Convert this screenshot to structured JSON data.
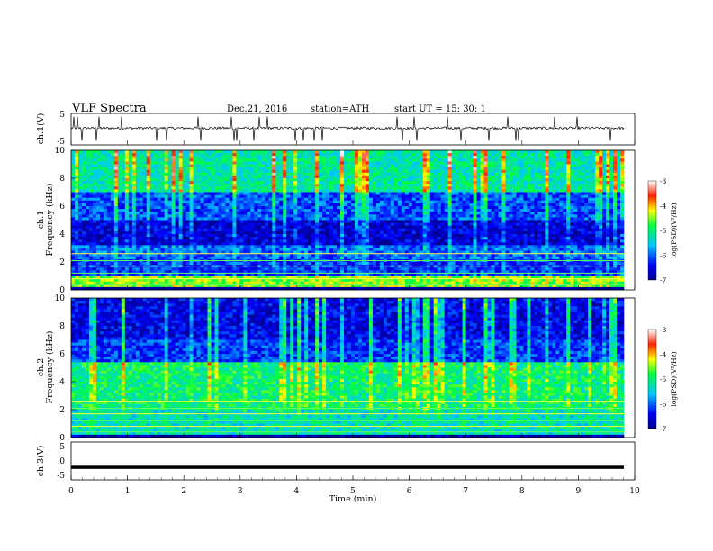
{
  "header": {
    "title": "VLF  Spectra",
    "date": "Dec.21, 2016",
    "station": "station=ATH",
    "start": "start  UT  =    15: 30: 1"
  },
  "chart_data": [
    {
      "type": "line",
      "name": "ch1-waveform",
      "ylabel": "ch.1(V)",
      "xlim": [
        0,
        10
      ],
      "ylim": [
        -5,
        5
      ],
      "yticks": [
        "5",
        "-5"
      ],
      "baseline_v": 0.2,
      "spike_times_min": [
        0.05,
        0.12,
        0.19,
        0.45,
        0.5,
        0.92,
        1.55,
        1.72,
        2.3,
        2.35,
        2.9,
        2.95,
        3.0,
        3.3,
        3.4,
        3.55,
        4.05,
        4.2,
        4.4,
        4.55,
        5.9,
        6.0,
        6.2,
        6.25,
        6.8,
        7.05,
        7.55,
        7.9,
        8.05,
        8.1,
        8.75,
        9.15,
        9.75
      ]
    },
    {
      "type": "heatmap",
      "name": "ch1-spectrogram",
      "ylabel_top": "ch.1",
      "ylabel": "Frequency  (kHz)",
      "xlim": [
        0,
        9.8
      ],
      "ylim": [
        0,
        10
      ],
      "yticks": [
        "0",
        "2",
        "4",
        "6",
        "8",
        "10"
      ],
      "colorbar": {
        "label": "log(PSD)(V²/Hz)",
        "ticks": [
          "-3",
          "-4",
          "-5",
          "-6",
          "-7"
        ],
        "range": [
          -7,
          -3
        ]
      },
      "bands_khz": [
        {
          "from": 0,
          "to": 0.2,
          "level": -7
        },
        {
          "from": 0.2,
          "to": 1.0,
          "level": -4.5
        },
        {
          "from": 1.0,
          "to": 2.2,
          "level": -6.2
        },
        {
          "from": 2.2,
          "to": 3.2,
          "level": -6.0
        },
        {
          "from": 3.2,
          "to": 5.0,
          "level": -6.6
        },
        {
          "from": 5.0,
          "to": 7.0,
          "level": -6.1
        },
        {
          "from": 7.0,
          "to": 10.0,
          "level": -5.2
        }
      ]
    },
    {
      "type": "heatmap",
      "name": "ch2-spectrogram",
      "ylabel_top": "ch.2",
      "ylabel": "Frequency  (kHz)",
      "xlim": [
        0,
        9.8
      ],
      "ylim": [
        0,
        10
      ],
      "yticks": [
        "0",
        "2",
        "4",
        "6",
        "8",
        "10"
      ],
      "colorbar": {
        "label": "log(PSD)(V²/Hz)",
        "ticks": [
          "-3",
          "-4",
          "-5",
          "-6",
          "-7"
        ],
        "range": [
          -7,
          -3
        ]
      },
      "bands_khz": [
        {
          "from": 0,
          "to": 0.3,
          "level": -6.8
        },
        {
          "from": 0.3,
          "to": 2.0,
          "level": -5.3
        },
        {
          "from": 2.0,
          "to": 5.5,
          "level": -5.0
        },
        {
          "from": 5.5,
          "to": 7.0,
          "level": -6.2
        },
        {
          "from": 7.0,
          "to": 10.0,
          "level": -6.5
        }
      ]
    },
    {
      "type": "line",
      "name": "ch3-waveform",
      "ylabel": "ch.3(V)",
      "xlim": [
        0,
        10
      ],
      "ylim": [
        -5,
        5
      ],
      "yticks": [
        "5",
        "0",
        "-5"
      ],
      "baseline_v": -2.2
    }
  ],
  "x_axis": {
    "label": "Time  (min)",
    "ticks": [
      "0",
      "1",
      "2",
      "3",
      "4",
      "5",
      "6",
      "7",
      "8",
      "9",
      "10"
    ]
  }
}
